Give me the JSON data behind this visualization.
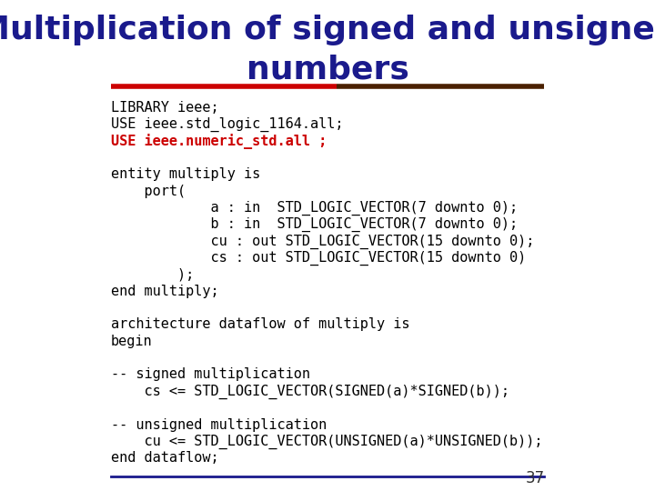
{
  "title_line1": "Multiplication of signed and unsigned",
  "title_line2": "numbers",
  "title_color": "#1a1a8c",
  "title_fontsize": 26,
  "bg_color": "#ffffff",
  "separator_color_left": "#cc0000",
  "separator_color_right": "#4a2000",
  "footer_line_color": "#1a1a8c",
  "page_number": "37",
  "code_lines": [
    {
      "text": "LIBRARY ieee;",
      "color": "#000000",
      "bold": false
    },
    {
      "text": "USE ieee.std_logic_1164.all;",
      "color": "#000000",
      "bold": false
    },
    {
      "text": "USE ieee.numeric_std.all ;",
      "color": "#cc0000",
      "bold": true
    },
    {
      "text": "",
      "color": "#000000",
      "bold": false
    },
    {
      "text": "entity multiply is",
      "color": "#000000",
      "bold": false
    },
    {
      "text": "    port(",
      "color": "#000000",
      "bold": false
    },
    {
      "text": "            a : in  STD_LOGIC_VECTOR(7 downto 0);",
      "color": "#000000",
      "bold": false
    },
    {
      "text": "            b : in  STD_LOGIC_VECTOR(7 downto 0);",
      "color": "#000000",
      "bold": false
    },
    {
      "text": "            cu : out STD_LOGIC_VECTOR(15 downto 0);",
      "color": "#000000",
      "bold": false
    },
    {
      "text": "            cs : out STD_LOGIC_VECTOR(15 downto 0)",
      "color": "#000000",
      "bold": false
    },
    {
      "text": "        );",
      "color": "#000000",
      "bold": false
    },
    {
      "text": "end multiply;",
      "color": "#000000",
      "bold": false
    },
    {
      "text": "",
      "color": "#000000",
      "bold": false
    },
    {
      "text": "architecture dataflow of multiply is",
      "color": "#000000",
      "bold": false
    },
    {
      "text": "begin",
      "color": "#000000",
      "bold": false
    },
    {
      "text": "",
      "color": "#000000",
      "bold": false
    },
    {
      "text": "-- signed multiplication",
      "color": "#000000",
      "bold": false
    },
    {
      "text": "    cs <= STD_LOGIC_VECTOR(SIGNED(a)*SIGNED(b));",
      "color": "#000000",
      "bold": false
    },
    {
      "text": "",
      "color": "#000000",
      "bold": false
    },
    {
      "text": "-- unsigned multiplication",
      "color": "#000000",
      "bold": false
    },
    {
      "text": "    cu <= STD_LOGIC_VECTOR(UNSIGNED(a)*UNSIGNED(b));",
      "color": "#000000",
      "bold": false
    },
    {
      "text": "end dataflow;",
      "color": "#000000",
      "bold": false
    }
  ],
  "code_fontsize": 11,
  "code_font": "monospace"
}
